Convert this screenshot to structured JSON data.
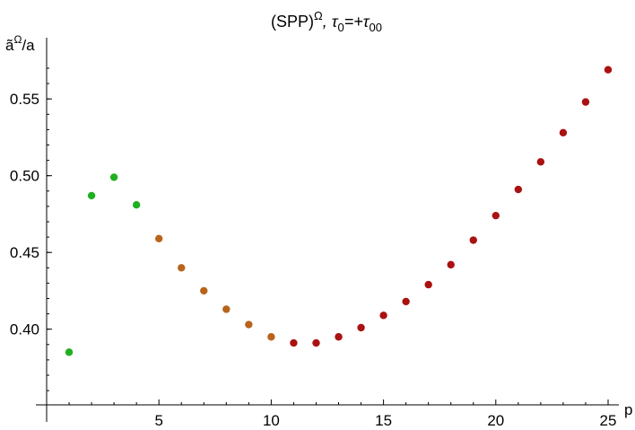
{
  "chart_data": {
    "type": "scatter",
    "title": "(SPP)^Ω,  τ0=+τ00",
    "title_parts": {
      "base": "(SPP)",
      "sup": "Ω",
      "rest_a": ",  τ",
      "sub_a": "0",
      "rest_b": "=+τ",
      "sub_b": "00"
    },
    "xlabel": "p",
    "ylabel": "ã^Ω/a",
    "ylabel_parts": {
      "base": "ã",
      "sup": "Ω",
      "rest": "/a"
    },
    "xlim": [
      0,
      26
    ],
    "ylim": [
      0.35,
      0.575
    ],
    "x_ticks": [
      5,
      10,
      15,
      20,
      25
    ],
    "y_ticks": [
      "0.40",
      "0.45",
      "0.50",
      "0.55"
    ],
    "grid": false,
    "series": [
      {
        "color": "#1fb01f",
        "x": [
          1,
          2,
          3,
          4
        ],
        "y": [
          0.385,
          0.487,
          0.499,
          0.481
        ]
      },
      {
        "color": "#b8641a",
        "x": [
          5,
          6,
          7,
          8,
          9,
          10
        ],
        "y": [
          0.459,
          0.44,
          0.425,
          0.413,
          0.403,
          0.395
        ]
      },
      {
        "color": "#aa1111",
        "x": [
          11,
          12,
          13,
          14,
          15,
          16,
          17,
          18,
          19,
          20,
          21,
          22,
          23,
          24,
          25
        ],
        "y": [
          0.391,
          0.391,
          0.395,
          0.401,
          0.409,
          0.418,
          0.429,
          0.442,
          0.458,
          0.474,
          0.491,
          0.509,
          0.528,
          0.548,
          0.569
        ]
      }
    ]
  }
}
